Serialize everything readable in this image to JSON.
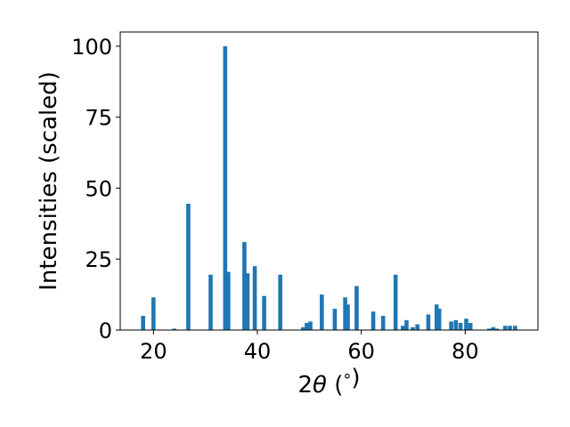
{
  "chart_data": {
    "type": "bar",
    "title": "",
    "xlabel": "2θ (°)",
    "ylabel": "Intensities (scaled)",
    "xlim": [
      13.6,
      94.0
    ],
    "ylim": [
      0,
      105
    ],
    "xticks": [
      20,
      40,
      60,
      80
    ],
    "yticks": [
      0,
      25,
      50,
      75,
      100
    ],
    "grid": false,
    "bar_color": "#1f77b4",
    "x": [
      18.0,
      20.0,
      24.0,
      26.7,
      31.0,
      33.8,
      34.4,
      37.5,
      38.1,
      39.5,
      41.3,
      44.4,
      48.8,
      49.5,
      50.2,
      52.4,
      54.9,
      56.9,
      57.4,
      59.1,
      62.3,
      64.2,
      66.6,
      68.0,
      68.7,
      69.9,
      70.8,
      72.9,
      74.5,
      75.0,
      77.3,
      78.2,
      79.1,
      80.2,
      81.0,
      84.6,
      85.4,
      86.1,
      87.7,
      88.6,
      89.6
    ],
    "values": [
      5.0,
      11.5,
      0.5,
      44.5,
      19.5,
      100,
      20.5,
      31.0,
      20.0,
      22.5,
      12.0,
      19.5,
      1.0,
      2.5,
      3.0,
      12.5,
      7.5,
      11.5,
      9.0,
      15.5,
      6.5,
      5.0,
      19.5,
      1.5,
      3.5,
      1.0,
      2.0,
      5.5,
      9.0,
      7.5,
      3.0,
      3.5,
      2.5,
      4.0,
      2.5,
      0.5,
      1.0,
      0.5,
      1.5,
      1.5,
      1.5
    ]
  }
}
